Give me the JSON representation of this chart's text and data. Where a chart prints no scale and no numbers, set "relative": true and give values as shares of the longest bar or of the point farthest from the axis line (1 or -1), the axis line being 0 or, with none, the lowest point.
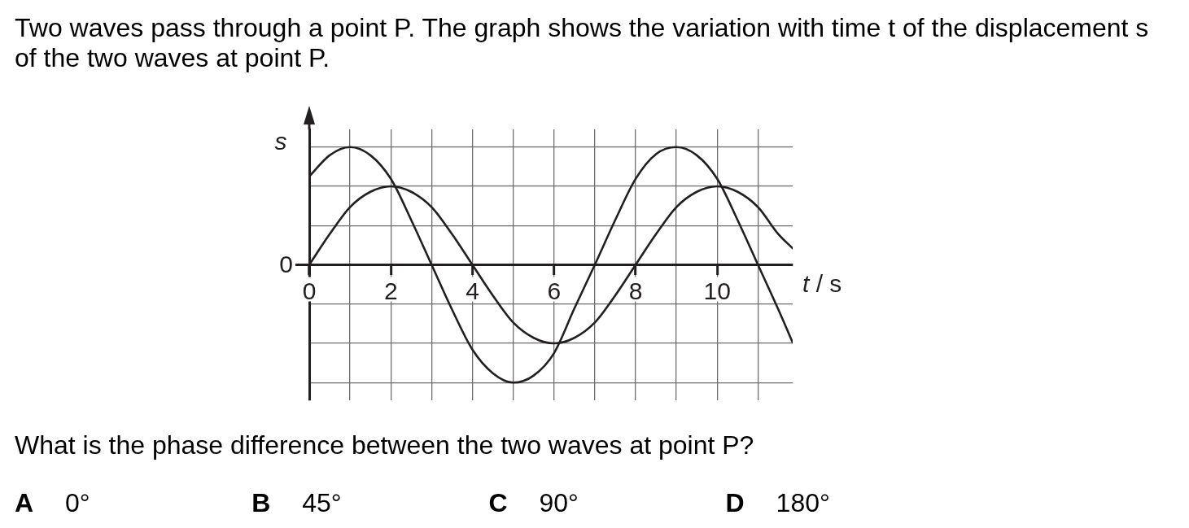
{
  "chart_data": {
    "type": "line",
    "title": "Two waves pass through a point P. The graph shows the variation with time t of the displacement s of the two waves at point P.",
    "xlabel": "t / s",
    "ylabel": "s",
    "annotations": [
      "0",
      "What is the phase difference between the two waves at point P?",
      "A 0°",
      "B 45°",
      "C 90°",
      "D 180°"
    ],
    "x": [
      0,
      0.5,
      1,
      1.5,
      2,
      2.5,
      3,
      3.5,
      4,
      4.5,
      5,
      5.5,
      6,
      6.5,
      7,
      7.5,
      8,
      8.5,
      9,
      9.5,
      10,
      10.5,
      11,
      11.5,
      11.85
    ],
    "series": [
      {
        "color": "#231f20",
        "values": [
          0.75,
          0.93,
          1.0,
          0.93,
          0.73,
          0.38,
          0,
          -0.38,
          -0.72,
          -0.92,
          -1.0,
          -0.94,
          -0.75,
          -0.37,
          0,
          0.38,
          0.73,
          0.94,
          1.0,
          0.93,
          0.73,
          0.38,
          0,
          -0.38,
          -0.66
        ]
      },
      {
        "color": "#231f20",
        "values": [
          0,
          0.26,
          0.49,
          0.62,
          0.667,
          0.62,
          0.49,
          0.26,
          0,
          -0.26,
          -0.49,
          -0.62,
          -0.667,
          -0.62,
          -0.49,
          -0.26,
          0,
          0.26,
          0.49,
          0.62,
          0.667,
          0.62,
          0.49,
          0.26,
          0.14
        ]
      }
    ],
    "relative": true,
    "xlim": [
      0,
      11.85
    ],
    "xticks": [
      0,
      {
        "value": 1,
        "label": null
      },
      2,
      {
        "value": 3,
        "label": null
      },
      4,
      {
        "value": 5,
        "label": null
      },
      6,
      {
        "value": 7,
        "label": null
      },
      8,
      {
        "value": 9,
        "label": null
      },
      10,
      {
        "value": 11,
        "label": null
      }
    ],
    "grid": true
  }
}
